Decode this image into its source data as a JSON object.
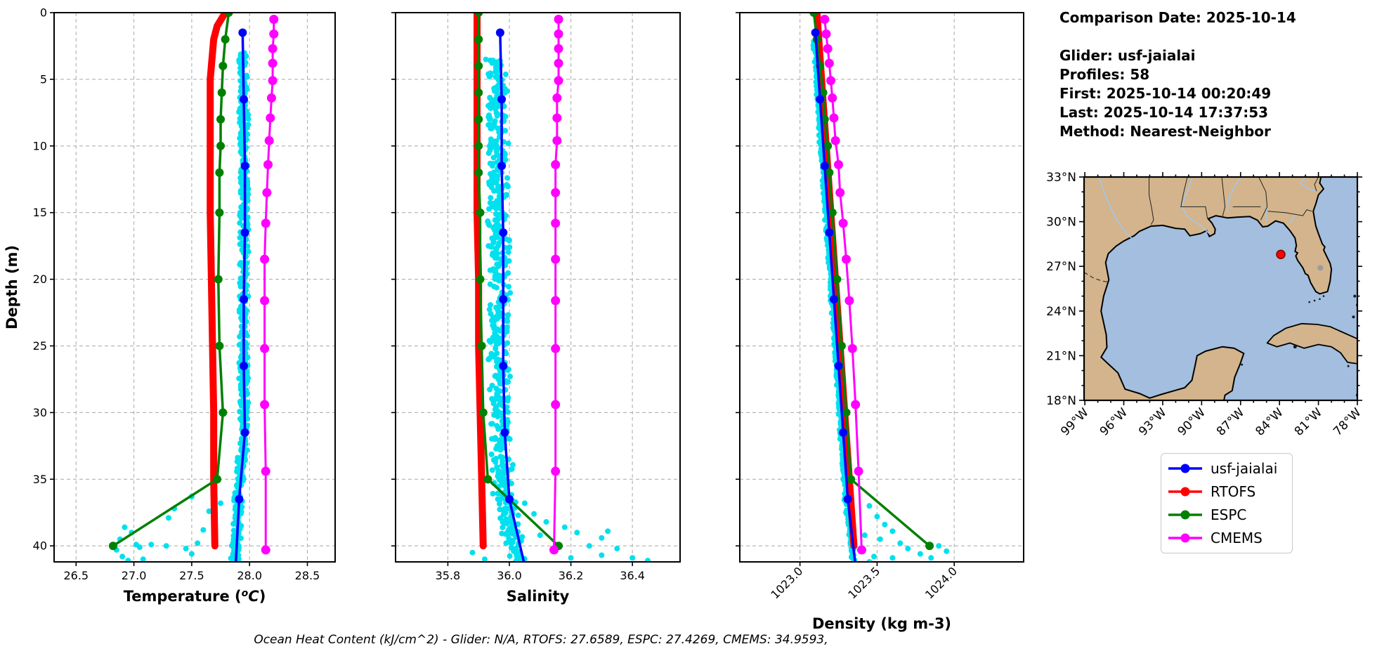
{
  "info_panel": {
    "lines": [
      "Comparison Date: 2025-10-14",
      "",
      "Glider: usf-jaialai",
      "Profiles: 58",
      "First: 2025-10-14 00:20:49",
      "Last: 2025-10-14 17:37:53",
      "Method: Nearest-Neighbor"
    ]
  },
  "footer_note": "Ocean Heat Content (kJ/cm^2) - Glider: N/A,  RTOFS: 27.6589,  ESPC: 27.4269,  CMEMS: 34.9593,",
  "legend": {
    "items": [
      {
        "label": "usf-jaialai",
        "color": "#0000ff"
      },
      {
        "label": "RTOFS",
        "color": "#ff0000"
      },
      {
        "label": "ESPC",
        "color": "#008000"
      },
      {
        "label": "CMEMS",
        "color": "#ff00ff"
      }
    ]
  },
  "depth_axis": {
    "label": "Depth (m)",
    "ticks": [
      0,
      5,
      10,
      15,
      20,
      25,
      30,
      35,
      40
    ],
    "ylim": [
      0,
      41.2
    ]
  },
  "map": {
    "lat_ticks": [
      {
        "value": 33,
        "label": "33°N"
      },
      {
        "value": 30,
        "label": "30°N"
      },
      {
        "value": 27,
        "label": "27°N"
      },
      {
        "value": 24,
        "label": "24°N"
      },
      {
        "value": 21,
        "label": "21°N"
      },
      {
        "value": 18,
        "label": "18°N"
      }
    ],
    "lon_ticks": [
      {
        "value": -99,
        "label": "99°W"
      },
      {
        "value": -96,
        "label": "96°W"
      },
      {
        "value": -93,
        "label": "93°W"
      },
      {
        "value": -90,
        "label": "90°W"
      },
      {
        "value": -87,
        "label": "87°W"
      },
      {
        "value": -84,
        "label": "84°W"
      },
      {
        "value": -81,
        "label": "81°W"
      },
      {
        "value": -78,
        "label": "78°W"
      }
    ],
    "colors": {
      "land": "#d3b48c",
      "water": "#a3bede",
      "river": "#a4c7e9",
      "coast": "#000000",
      "lake": "#9a9a9a"
    },
    "glider_marker": {
      "lon": -83.9,
      "lat": 27.8,
      "color": "#ff0000"
    }
  },
  "chart_data": [
    {
      "type": "line",
      "xlabel": "Temperature (°C)",
      "xlim": [
        26.31,
        28.74
      ],
      "xticks": [
        26.5,
        27.0,
        27.5,
        28.0,
        28.5
      ],
      "xtick_labels": [
        "26.5",
        "27.0",
        "27.5",
        "28.0",
        "28.5"
      ],
      "rotate_xticks": false,
      "grid": true,
      "series": [
        {
          "name": "RTOFS",
          "color": "#ff0000",
          "lw": 10,
          "marker": 0,
          "points": [
            [
              27.79,
              0
            ],
            [
              27.72,
              1
            ],
            [
              27.69,
              2
            ],
            [
              27.68,
              3
            ],
            [
              27.67,
              4
            ],
            [
              27.66,
              5
            ],
            [
              27.66,
              8
            ],
            [
              27.66,
              12
            ],
            [
              27.66,
              15
            ],
            [
              27.67,
              20
            ],
            [
              27.68,
              25
            ],
            [
              27.69,
              30
            ],
            [
              27.69,
              35
            ],
            [
              27.7,
              40
            ]
          ]
        },
        {
          "name": "ESPC",
          "color": "#008000",
          "lw": 3.5,
          "marker": 6,
          "points": [
            [
              27.82,
              0
            ],
            [
              27.79,
              2
            ],
            [
              27.77,
              4
            ],
            [
              27.76,
              6
            ],
            [
              27.75,
              8
            ],
            [
              27.75,
              10
            ],
            [
              27.74,
              12
            ],
            [
              27.74,
              15
            ],
            [
              27.73,
              20
            ],
            [
              27.74,
              25
            ],
            [
              27.77,
              30
            ],
            [
              27.72,
              35
            ],
            [
              26.82,
              40
            ]
          ]
        },
        {
          "name": "usf-jaialai",
          "color": "#0000ff",
          "lw": 3.5,
          "marker": 6,
          "points": [
            [
              27.94,
              1.5
            ],
            [
              27.95,
              6.5
            ],
            [
              27.96,
              11.5
            ],
            [
              27.96,
              16.5
            ],
            [
              27.95,
              21.5
            ],
            [
              27.95,
              26.5
            ],
            [
              27.96,
              31.5
            ],
            [
              27.91,
              36.5
            ],
            [
              27.88,
              41.5
            ]
          ]
        },
        {
          "name": "CMEMS",
          "color": "#ff00ff",
          "lw": 3,
          "marker": 6.5,
          "points": [
            [
              28.21,
              0.5
            ],
            [
              28.21,
              1.6
            ],
            [
              28.2,
              2.7
            ],
            [
              28.2,
              3.8
            ],
            [
              28.2,
              5.1
            ],
            [
              28.19,
              6.4
            ],
            [
              28.18,
              7.9
            ],
            [
              28.17,
              9.6
            ],
            [
              28.16,
              11.4
            ],
            [
              28.15,
              13.5
            ],
            [
              28.14,
              15.8
            ],
            [
              28.13,
              18.5
            ],
            [
              28.13,
              21.6
            ],
            [
              28.13,
              25.2
            ],
            [
              28.13,
              29.4
            ],
            [
              28.14,
              34.4
            ],
            [
              28.14,
              40.3
            ]
          ]
        }
      ],
      "scatter": {
        "name": "glider-raw-temperature",
        "color": "#00e0ee",
        "r": 4,
        "column": {
          "follow": "usf-jaialai",
          "offset": -0.005,
          "spread": 0.045,
          "depth_min": 3,
          "depth_max": 41.1,
          "n": 600
        },
        "outliers": [
          [
            27.5,
            36.3
          ],
          [
            27.75,
            36.8
          ],
          [
            27.35,
            37.2
          ],
          [
            27.3,
            37.9
          ],
          [
            27.65,
            37.4
          ],
          [
            27.6,
            38.8
          ],
          [
            26.92,
            38.6
          ],
          [
            26.98,
            39.0
          ],
          [
            26.88,
            39.5
          ],
          [
            27.55,
            39.8
          ],
          [
            27.15,
            39.9
          ],
          [
            27.02,
            39.9
          ],
          [
            27.05,
            40.1
          ],
          [
            27.45,
            40.2
          ],
          [
            26.85,
            40.3
          ],
          [
            27.5,
            40.6
          ],
          [
            26.9,
            40.8
          ],
          [
            27.28,
            40.0
          ],
          [
            26.95,
            41.1
          ],
          [
            27.08,
            41.0
          ]
        ]
      }
    },
    {
      "type": "line",
      "xlabel": "Salinity",
      "xlim": [
        35.63,
        36.555
      ],
      "xticks": [
        35.8,
        36.0,
        36.2,
        36.4
      ],
      "xtick_labels": [
        "35.8",
        "36.0",
        "36.2",
        "36.4"
      ],
      "rotate_xticks": false,
      "grid": true,
      "series": [
        {
          "name": "RTOFS",
          "color": "#ff0000",
          "lw": 10,
          "marker": 0,
          "points": [
            [
              35.895,
              0
            ],
            [
              35.895,
              2
            ],
            [
              35.895,
              5
            ],
            [
              35.895,
              8
            ],
            [
              35.895,
              12
            ],
            [
              35.895,
              15
            ],
            [
              35.9,
              20
            ],
            [
              35.9,
              25
            ],
            [
              35.905,
              30
            ],
            [
              35.91,
              35
            ],
            [
              35.915,
              40
            ]
          ]
        },
        {
          "name": "ESPC",
          "color": "#008000",
          "lw": 3.5,
          "marker": 6,
          "points": [
            [
              35.9,
              0
            ],
            [
              35.9,
              2
            ],
            [
              35.9,
              4
            ],
            [
              35.9,
              6
            ],
            [
              35.9,
              8
            ],
            [
              35.9,
              10
            ],
            [
              35.9,
              12
            ],
            [
              35.905,
              15
            ],
            [
              35.905,
              20
            ],
            [
              35.91,
              25
            ],
            [
              35.915,
              30
            ],
            [
              35.93,
              35
            ],
            [
              36.16,
              40
            ]
          ]
        },
        {
          "name": "usf-jaialai",
          "color": "#0000ff",
          "lw": 3.5,
          "marker": 6,
          "points": [
            [
              35.97,
              1.5
            ],
            [
              35.975,
              6.5
            ],
            [
              35.975,
              11.5
            ],
            [
              35.98,
              16.5
            ],
            [
              35.98,
              21.5
            ],
            [
              35.98,
              26.5
            ],
            [
              35.985,
              31.5
            ],
            [
              36.0,
              36.5
            ],
            [
              36.05,
              41.5
            ]
          ]
        },
        {
          "name": "CMEMS",
          "color": "#ff00ff",
          "lw": 3,
          "marker": 6.5,
          "points": [
            [
              36.16,
              0.5
            ],
            [
              36.16,
              1.6
            ],
            [
              36.16,
              2.7
            ],
            [
              36.16,
              3.8
            ],
            [
              36.16,
              5.1
            ],
            [
              36.155,
              6.4
            ],
            [
              36.155,
              7.9
            ],
            [
              36.155,
              9.6
            ],
            [
              36.15,
              11.4
            ],
            [
              36.15,
              13.5
            ],
            [
              36.15,
              15.8
            ],
            [
              36.15,
              18.5
            ],
            [
              36.15,
              21.6
            ],
            [
              36.15,
              25.2
            ],
            [
              36.15,
              29.4
            ],
            [
              36.15,
              34.4
            ],
            [
              36.145,
              40.3
            ]
          ]
        }
      ],
      "scatter": {
        "name": "glider-raw-salinity",
        "color": "#00e0ee",
        "r": 4,
        "column": {
          "follow": "usf-jaialai",
          "offset": -0.015,
          "spread": 0.04,
          "depth_min": 3.5,
          "depth_max": 41.1,
          "n": 600
        },
        "outliers": [
          [
            36.05,
            36.8
          ],
          [
            36.08,
            37.6
          ],
          [
            36.12,
            38.2
          ],
          [
            36.18,
            38.6
          ],
          [
            36.1,
            39.2
          ],
          [
            36.22,
            39.0
          ],
          [
            36.3,
            39.4
          ],
          [
            36.26,
            40.0
          ],
          [
            36.35,
            40.2
          ],
          [
            36.3,
            40.7
          ],
          [
            36.4,
            40.9
          ],
          [
            36.45,
            41.1
          ],
          [
            36.15,
            40.4
          ],
          [
            36.2,
            40.9
          ],
          [
            35.88,
            40.5
          ],
          [
            35.92,
            41.0
          ],
          [
            36.02,
            41.2
          ],
          [
            36.32,
            38.9
          ]
        ]
      }
    },
    {
      "type": "line",
      "xlabel": "Density (kg m-3)",
      "xlim": [
        1022.61,
        1024.45
      ],
      "xticks": [
        1023.0,
        1023.5,
        1024.0
      ],
      "xtick_labels": [
        "1023.0",
        "1023.5",
        "1024.0"
      ],
      "rotate_xticks": true,
      "grid": true,
      "series": [
        {
          "name": "RTOFS",
          "color": "#ff0000",
          "lw": 10,
          "marker": 0,
          "points": [
            [
              1023.11,
              0
            ],
            [
              1023.14,
              5
            ],
            [
              1023.17,
              10
            ],
            [
              1023.2,
              15
            ],
            [
              1023.23,
              20
            ],
            [
              1023.26,
              25
            ],
            [
              1023.29,
              30
            ],
            [
              1023.32,
              35
            ],
            [
              1023.35,
              40
            ]
          ]
        },
        {
          "name": "ESPC",
          "color": "#008000",
          "lw": 3.5,
          "marker": 6,
          "points": [
            [
              1023.09,
              0
            ],
            [
              1023.11,
              2
            ],
            [
              1023.13,
              4
            ],
            [
              1023.15,
              6
            ],
            [
              1023.16,
              8
            ],
            [
              1023.18,
              10
            ],
            [
              1023.19,
              12
            ],
            [
              1023.21,
              15
            ],
            [
              1023.24,
              20
            ],
            [
              1023.27,
              25
            ],
            [
              1023.3,
              30
            ],
            [
              1023.33,
              35
            ],
            [
              1023.84,
              40
            ]
          ]
        },
        {
          "name": "usf-jaialai",
          "color": "#0000ff",
          "lw": 3.5,
          "marker": 6,
          "points": [
            [
              1023.1,
              1.5
            ],
            [
              1023.13,
              6.5
            ],
            [
              1023.16,
              11.5
            ],
            [
              1023.19,
              16.5
            ],
            [
              1023.22,
              21.5
            ],
            [
              1023.25,
              26.5
            ],
            [
              1023.28,
              31.5
            ],
            [
              1023.31,
              36.5
            ],
            [
              1023.36,
              41.5
            ]
          ]
        },
        {
          "name": "CMEMS",
          "color": "#ff00ff",
          "lw": 3,
          "marker": 6.5,
          "points": [
            [
              1023.16,
              0.5
            ],
            [
              1023.17,
              1.6
            ],
            [
              1023.18,
              2.7
            ],
            [
              1023.19,
              3.8
            ],
            [
              1023.2,
              5.1
            ],
            [
              1023.21,
              6.4
            ],
            [
              1023.22,
              7.9
            ],
            [
              1023.23,
              9.6
            ],
            [
              1023.25,
              11.4
            ],
            [
              1023.26,
              13.5
            ],
            [
              1023.28,
              15.8
            ],
            [
              1023.3,
              18.5
            ],
            [
              1023.32,
              21.6
            ],
            [
              1023.34,
              25.2
            ],
            [
              1023.36,
              29.4
            ],
            [
              1023.38,
              34.4
            ],
            [
              1023.4,
              40.3
            ]
          ]
        }
      ],
      "scatter": {
        "name": "glider-raw-density",
        "color": "#00e0ee",
        "r": 4,
        "column": {
          "follow": "usf-jaialai",
          "offset": -0.008,
          "spread": 0.016,
          "depth_min": 2,
          "depth_max": 41.1,
          "n": 600
        },
        "outliers": [
          [
            1023.45,
            37.0
          ],
          [
            1023.5,
            37.8
          ],
          [
            1023.55,
            38.4
          ],
          [
            1023.6,
            38.9
          ],
          [
            1023.52,
            39.5
          ],
          [
            1023.65,
            39.8
          ],
          [
            1023.7,
            40.2
          ],
          [
            1023.78,
            40.6
          ],
          [
            1023.85,
            40.9
          ],
          [
            1023.9,
            40.0
          ],
          [
            1023.95,
            40.4
          ],
          [
            1023.6,
            40.9
          ],
          [
            1023.45,
            41.2
          ],
          [
            1023.42,
            39.2
          ],
          [
            1023.48,
            40.8
          ]
        ]
      }
    }
  ]
}
